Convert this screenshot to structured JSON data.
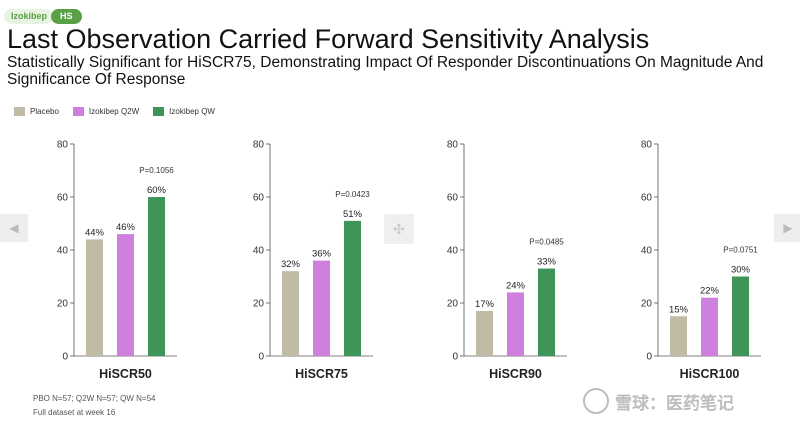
{
  "header": {
    "drug_tag": "Izokibep",
    "indication_tag": "HS",
    "title": "Last Observation Carried Forward Sensitivity Analysis",
    "subtitle": "Statistically Significant for HiSCR75, Demonstrating Impact Of Responder Discontinuations On Magnitude And Significance Of Response"
  },
  "legend": [
    {
      "label": "Placebo",
      "color": "#bfbba5"
    },
    {
      "label": "Izokibep Q2W",
      "color": "#cf7fdd"
    },
    {
      "label": "Izokibep QW",
      "color": "#3f9458"
    }
  ],
  "footnotes": {
    "line1": "PBO N=57; Q2W N=57; QW N=54",
    "line2": "Full dataset at week 16"
  },
  "watermark": "雪球：医药笔记",
  "chart_data": [
    {
      "type": "bar",
      "xlabel": "HiSCR50",
      "ylim": [
        0,
        80
      ],
      "yticks": [
        "0",
        "20",
        "40",
        "60",
        "80"
      ],
      "categories": [
        "Placebo",
        "Izokibep Q2W",
        "Izokibep QW"
      ],
      "values": [
        44,
        46,
        60
      ],
      "value_labels": [
        "44%",
        "46%",
        "60%"
      ],
      "annotation": "P=0.1056"
    },
    {
      "type": "bar",
      "xlabel": "HiSCR75",
      "ylim": [
        0,
        80
      ],
      "yticks": [
        "0",
        "20",
        "40",
        "60",
        "80"
      ],
      "categories": [
        "Placebo",
        "Izokibep Q2W",
        "Izokibep QW"
      ],
      "values": [
        32,
        36,
        51
      ],
      "value_labels": [
        "32%",
        "36%",
        "51%"
      ],
      "annotation": "P=0.0423"
    },
    {
      "type": "bar",
      "xlabel": "HiSCR90",
      "ylim": [
        0,
        80
      ],
      "yticks": [
        "0",
        "20",
        "40",
        "60",
        "80"
      ],
      "categories": [
        "Placebo",
        "Izokibep Q2W",
        "Izokibep QW"
      ],
      "values": [
        17,
        24,
        33
      ],
      "value_labels": [
        "17%",
        "24%",
        "33%"
      ],
      "annotation": "P=0.0485"
    },
    {
      "type": "bar",
      "xlabel": "HiSCR100",
      "ylim": [
        0,
        80
      ],
      "yticks": [
        "0",
        "20",
        "40",
        "60",
        "80"
      ],
      "categories": [
        "Placebo",
        "Izokibep Q2W",
        "Izokibep QW"
      ],
      "values": [
        15,
        22,
        30
      ],
      "value_labels": [
        "15%",
        "22%",
        "30%"
      ],
      "annotation": "P=0.0751"
    }
  ]
}
